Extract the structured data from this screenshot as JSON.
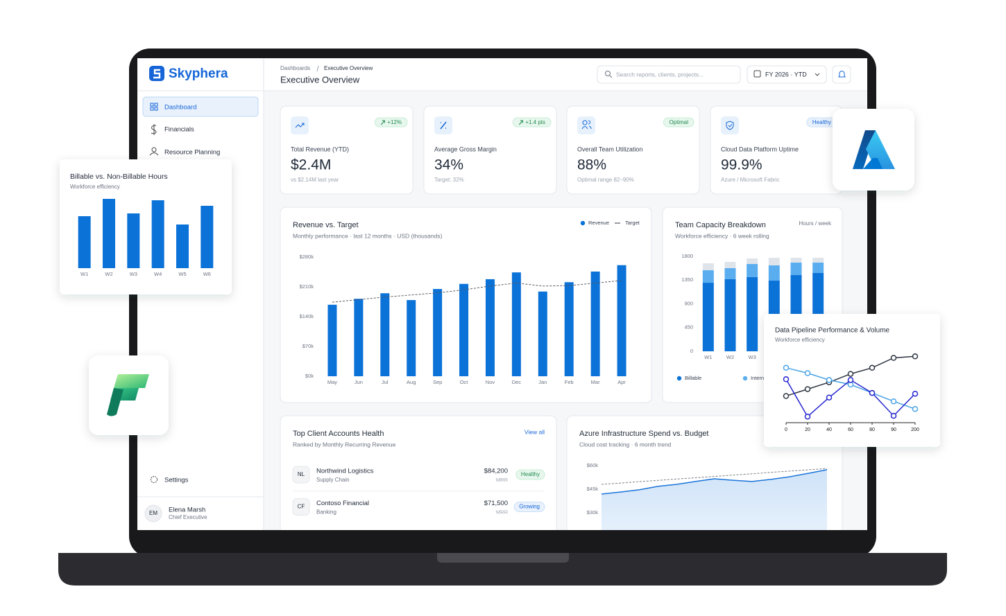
{
  "sidebar": {
    "brand": "Skyphera",
    "nav": [
      "Dashboard",
      "Financials",
      "Resource Planning"
    ],
    "settings": "Settings",
    "user": {
      "initials": "EM",
      "name": "Elena Marsh",
      "role": "Chief Executive"
    }
  },
  "header": {
    "breadcrumb": [
      "Dashboards",
      "Executive Overview"
    ],
    "title": "Executive Overview",
    "search": "Search reports, clients, projects...",
    "period": "FY 2026 · YTD"
  },
  "kpis": [
    {
      "badge": "+12%",
      "label": "Total Revenue (YTD)",
      "value": "$2.4M",
      "note": "vs $2.14M last year"
    },
    {
      "badge": "+1.4 pts",
      "label": "Average Gross Margin",
      "value": "34%",
      "note": "Target: 32%"
    },
    {
      "badge": "Optimal",
      "label": "Overall Team Utilization",
      "value": "88%",
      "note": "Optimal range 82–90%"
    },
    {
      "badge": "Healthy",
      "label": "Cloud Data Platform Uptime",
      "value": "99.9%",
      "note": "Azure / Microsoft Fabric"
    }
  ],
  "clients": {
    "title": "Top Client Accounts Health",
    "subtitle": "Ranked by Monthly Recurring Revenue",
    "link": "View all",
    "rows": [
      {
        "initials": "NL",
        "name": "Northwind Logistics",
        "sector": "Supply Chain",
        "mrr": "$84,200",
        "unit": "MRR",
        "status": "Healthy"
      },
      {
        "initials": "CF",
        "name": "Contoso Financial",
        "sector": "Banking",
        "mrr": "$71,500",
        "unit": "MRR",
        "status": "Growing"
      }
    ]
  },
  "chart_data": [
    {
      "type": "combo",
      "title": "Revenue vs. Target",
      "subtitle": "Monthly performance · last 12 months · USD (thousands)",
      "categories": [
        "May",
        "Jun",
        "Jul",
        "Aug",
        "Sep",
        "Oct",
        "Nov",
        "Dec",
        "Jan",
        "Feb",
        "Mar",
        "Apr"
      ],
      "series": [
        {
          "name": "Revenue",
          "mark": "bar",
          "color": "#0b72d8",
          "values": [
            168,
            182,
            195,
            179,
            205,
            217,
            228,
            244,
            199,
            221,
            246,
            261
          ]
        },
        {
          "name": "Target",
          "mark": "line",
          "dashed": true,
          "color": "#555b63",
          "values": [
            174,
            180,
            186,
            191,
            196,
            203,
            212,
            219,
            212,
            213,
            219,
            225
          ]
        }
      ],
      "ylim": [
        0,
        280
      ],
      "yticks": [
        {
          "value": 0,
          "label": "$0k"
        },
        {
          "value": 70,
          "label": "$70k"
        },
        {
          "value": 140,
          "label": "$140k"
        },
        {
          "value": 210,
          "label": "$210k"
        },
        {
          "value": 280,
          "label": "$280k"
        }
      ]
    },
    {
      "type": "stacked",
      "title": "Team Capacity Breakdown",
      "subtitle": "Workforce efficiency · 6 week rolling",
      "unit_label": "Hours / week",
      "categories": [
        "W1",
        "W2",
        "W3",
        null,
        null,
        null
      ],
      "series": [
        {
          "name": "Billable",
          "color": "#0b72d8",
          "values": [
            1300,
            1367,
            1406,
            1340,
            1445,
            1485
          ]
        },
        {
          "name": "Internal",
          "color": "#5aaef0",
          "values": [
            237,
            210,
            250,
            289,
            237,
            197
          ]
        },
        {
          "color": "#dfe4ea",
          "values": [
            132,
            118,
            105,
            145,
            92,
            92
          ]
        }
      ],
      "ylim": [
        0,
        1800
      ],
      "yticks": [
        0,
        450,
        900,
        1350,
        1800
      ]
    },
    {
      "type": "area",
      "title": "Azure Infrastructure Spend vs. Budget",
      "subtitle": "Cloud cost tracking · 6 month trend",
      "categories": [
        null,
        null,
        null,
        null,
        null,
        null,
        null,
        null,
        null,
        null,
        null,
        null,
        null
      ],
      "series": [
        {
          "color": "#1a73d9",
          "values": [
            41.9,
            43.2,
            44.6,
            46.8,
            48.1,
            49.9,
            51.6,
            50.7,
            49.9,
            51.2,
            52.9,
            55.1,
            57.4
          ]
        },
        {
          "color": "#777d85",
          "dashed": true,
          "values": [
            48.1,
            48.9,
            49.8,
            50.6,
            51.5,
            52.3,
            53.1,
            54.0,
            54.8,
            55.7,
            56.5,
            57.3,
            58.2
          ]
        }
      ],
      "ylim": [
        30,
        60
      ],
      "yticks": [
        {
          "value": 30,
          "label": "$30k"
        },
        {
          "value": 45,
          "label": "$45k"
        },
        {
          "value": 60,
          "label": "$60k"
        }
      ]
    },
    {
      "type": "bar",
      "title": "Billable vs. Non-Billable Hours",
      "subtitle": "Workforce efficiency",
      "categories": [
        "W1",
        "W2",
        "W3",
        "W4",
        "W5",
        "W6"
      ],
      "values": [
        75,
        100,
        79,
        98,
        63,
        90
      ],
      "color": "#0b72d8",
      "ylim": [
        0,
        100
      ]
    },
    {
      "type": "line",
      "title": "Data Pipeline Performance & Volume",
      "subtitle": "Workforce efficiency",
      "categories": [
        "0",
        "20",
        "40",
        "60",
        "80",
        "90",
        "200"
      ],
      "series": [
        {
          "color": "#2d3540",
          "values": [
            35,
            44,
            53,
            64,
            72,
            85,
            87
          ]
        },
        {
          "color": "#4aa3e6",
          "values": [
            72,
            65,
            56,
            50,
            39,
            28,
            18
          ]
        },
        {
          "color": "#2626cf",
          "values": [
            57,
            8,
            33,
            56,
            39,
            9,
            38
          ]
        }
      ],
      "ylim": [
        0,
        100
      ]
    }
  ]
}
